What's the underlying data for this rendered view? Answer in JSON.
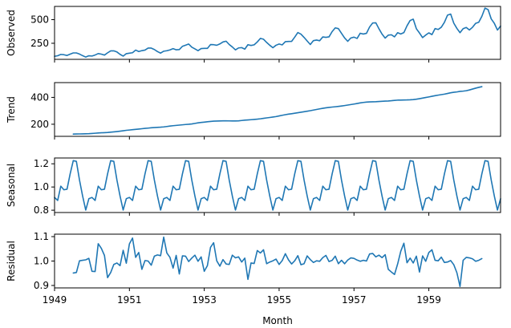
{
  "chart_data": {
    "type": "line",
    "title": "",
    "xlabel": "Month",
    "x_start": "1949-01",
    "x_end": "1960-12",
    "x_ticks": [
      "1949",
      "1951",
      "1953",
      "1955",
      "1957",
      "1959"
    ],
    "color": "#1f77b4",
    "grid": false,
    "panels": [
      {
        "ylabel": "Observed",
        "ylim": [
          80,
          640
        ],
        "yticks": [
          250,
          500
        ],
        "start": "1949-01",
        "values": [
          112,
          118,
          132,
          129,
          121,
          135,
          148,
          148,
          136,
          119,
          104,
          118,
          115,
          126,
          141,
          135,
          125,
          149,
          170,
          170,
          158,
          133,
          114,
          140,
          145,
          150,
          178,
          163,
          172,
          178,
          199,
          199,
          184,
          162,
          146,
          166,
          171,
          180,
          193,
          181,
          183,
          218,
          230,
          242,
          209,
          191,
          172,
          194,
          196,
          196,
          236,
          235,
          229,
          243,
          264,
          272,
          237,
          211,
          180,
          201,
          204,
          188,
          235,
          227,
          234,
          264,
          302,
          293,
          259,
          229,
          203,
          229,
          242,
          233,
          267,
          269,
          270,
          315,
          364,
          347,
          312,
          274,
          237,
          278,
          284,
          277,
          317,
          313,
          318,
          374,
          413,
          405,
          355,
          306,
          271,
          306,
          315,
          301,
          356,
          348,
          355,
          422,
          465,
          467,
          404,
          347,
          305,
          336,
          340,
          318,
          362,
          348,
          363,
          435,
          491,
          505,
          404,
          359,
          310,
          337,
          360,
          342,
          406,
          396,
          420,
          472,
          548,
          559,
          463,
          407,
          362,
          405,
          417,
          391,
          419,
          461,
          472,
          535,
          622,
          606,
          508,
          461,
          390,
          432
        ]
      },
      {
        "ylabel": "Trend",
        "ylim": [
          110,
          510
        ],
        "yticks": [
          200,
          400
        ],
        "start": "1949-07",
        "values": [
          126.79,
          127.25,
          127.96,
          128.58,
          129.0,
          129.75,
          131.25,
          133.08,
          134.92,
          136.42,
          137.42,
          138.75,
          140.92,
          143.17,
          145.71,
          148.42,
          151.54,
          154.71,
          157.12,
          159.54,
          161.83,
          164.12,
          166.67,
          169.08,
          171.25,
          173.58,
          175.46,
          176.83,
          178.04,
          180.17,
          183.12,
          186.21,
          189.04,
          191.29,
          193.58,
          195.83,
          198.04,
          199.75,
          202.21,
          206.25,
          210.42,
          213.38,
          215.83,
          218.5,
          220.92,
          222.92,
          224.08,
          224.71,
          225.33,
          225.33,
          224.96,
          224.58,
          224.46,
          225.54,
          228.0,
          230.46,
          232.25,
          233.92,
          235.62,
          237.75,
          240.5,
          243.96,
          247.17,
          250.25,
          253.5,
          257.12,
          261.83,
          266.67,
          271.12,
          275.21,
          278.5,
          281.96,
          285.75,
          289.33,
          293.25,
          297.17,
          301.0,
          305.46,
          309.96,
          314.42,
          318.62,
          322.38,
          325.42,
          327.92,
          330.25,
          332.92,
          335.96,
          339.12,
          342.79,
          346.58,
          350.38,
          354.5,
          358.71,
          362.29,
          364.79,
          366.46,
          367.17,
          367.96,
          369.42,
          370.79,
          372.17,
          373.33,
          375.08,
          377.67,
          379.5,
          380.0,
          380.71,
          380.96,
          381.83,
          383.67,
          386.5,
          390.33,
          394.71,
          399.0,
          403.46,
          408.33,
          412.71,
          416.62,
          420.42,
          424.25,
          429.17,
          434.38,
          438.04,
          440.67,
          444.67,
          446.54,
          449.5,
          455.25,
          461.83,
          468.62,
          474.5,
          479.83
        ]
      },
      {
        "ylabel": "Seasonal",
        "ylim": [
          0.78,
          1.25
        ],
        "yticks": [
          0.8,
          1.0,
          1.2
        ],
        "start": "1949-01",
        "pattern": [
          0.91,
          0.884,
          1.007,
          0.976,
          0.981,
          1.113,
          1.227,
          1.221,
          1.06,
          0.922,
          0.801,
          0.899
        ],
        "repeat_years": 12
      },
      {
        "ylabel": "Residual",
        "ylim": [
          0.89,
          1.11
        ],
        "yticks": [
          0.9,
          1.0,
          1.1
        ],
        "start": "1949-07",
        "values": [
          0.951,
          0.953,
          1.001,
          1.003,
          1.005,
          1.011,
          0.958,
          0.957,
          1.071,
          1.052,
          1.023,
          0.932,
          0.953,
          0.986,
          0.992,
          0.981,
          1.044,
          0.991,
          1.07,
          1.094,
          1.015,
          1.035,
          0.966,
          1.002,
          1.0,
          0.983,
          1.02,
          1.025,
          1.022,
          1.098,
          1.033,
          1.015,
          0.971,
          1.023,
          0.947,
          1.021,
          1.02,
          0.998,
          1.012,
          1.024,
          0.999,
          1.017,
          0.958,
          0.981,
          1.056,
          1.075,
          1.001,
          0.979,
          1.006,
          0.988,
          0.986,
          1.024,
          1.013,
          1.017,
          0.996,
          1.012,
          0.925,
          0.992,
          0.99,
          1.043,
          1.033,
          1.046,
          0.989,
          0.996,
          1.001,
          1.008,
          0.986,
          1.002,
          1.03,
          1.005,
          0.988,
          1.001,
          1.022,
          0.985,
          0.989,
          1.021,
          1.006,
          0.994,
          1.001,
          0.999,
          1.014,
          1.023,
          0.998,
          1.003,
          1.02,
          0.989,
          1.003,
          0.989,
          1.004,
          1.013,
          1.011,
          1.004,
          0.999,
          1.003,
          1.0,
          1.029,
          1.031,
          1.017,
          1.024,
          1.014,
          1.026,
          0.966,
          0.955,
          0.945,
          0.988,
          1.04,
          1.073,
          0.993,
          1.012,
          0.992,
          1.02,
          0.955,
          1.021,
          0.999,
          1.035,
          1.046,
          1.003,
          1.001,
          1.016,
          0.994,
          0.996,
          1.002,
          0.985,
          0.952,
          0.896,
          1.003,
          1.015,
          1.013,
          1.009,
          0.999,
          1.003,
          1.01
        ]
      }
    ]
  }
}
